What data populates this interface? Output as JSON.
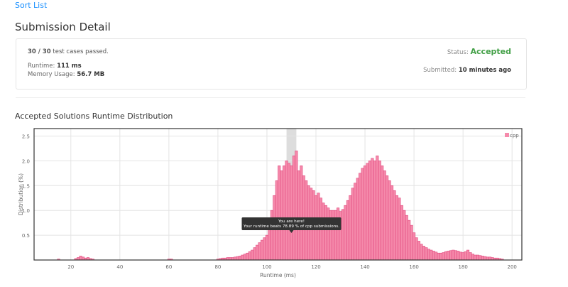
{
  "header": {
    "link": "Sort List",
    "title": "Submission Detail"
  },
  "detail": {
    "passed": "30 / 30",
    "passed_suffix": "test cases passed.",
    "runtime_label": "Runtime:",
    "runtime": "111 ms",
    "memory_label": "Memory Usage:",
    "memory": "56.7 MB",
    "status_label": "Status:",
    "status": "Accepted",
    "submitted_label": "Submitted:",
    "submitted": "10 minutes ago"
  },
  "chart_data": {
    "type": "bar",
    "title": "Accepted Solutions Runtime Distribution",
    "x_label": "Runtime (ms)",
    "y_label": "Distribution (%)",
    "x": [
      15,
      22,
      23,
      24,
      25,
      26,
      27,
      28,
      29,
      60,
      61,
      80,
      81,
      82,
      83,
      84,
      85,
      86,
      87,
      88,
      89,
      90,
      91,
      92,
      93,
      94,
      95,
      96,
      97,
      98,
      99,
      100,
      101,
      102,
      103,
      104,
      105,
      106,
      107,
      108,
      109,
      110,
      111,
      112,
      113,
      114,
      115,
      116,
      117,
      118,
      119,
      120,
      121,
      122,
      123,
      124,
      125,
      126,
      127,
      128,
      129,
      130,
      131,
      132,
      133,
      134,
      135,
      136,
      137,
      138,
      139,
      140,
      141,
      142,
      143,
      144,
      145,
      146,
      147,
      148,
      149,
      150,
      151,
      152,
      153,
      154,
      155,
      156,
      157,
      158,
      159,
      160,
      161,
      162,
      163,
      164,
      165,
      166,
      167,
      168,
      169,
      170,
      171,
      172,
      173,
      174,
      175,
      176,
      177,
      178,
      179,
      180,
      181,
      182,
      183,
      184,
      185,
      186,
      187,
      188,
      189,
      190,
      191,
      192,
      193,
      194,
      195,
      196
    ],
    "series": [
      {
        "name": "cpp",
        "color": "#f58aab",
        "values": [
          0.02,
          0.03,
          0.05,
          0.08,
          0.06,
          0.04,
          0.05,
          0.03,
          0.02,
          0.02,
          0.02,
          0.02,
          0.03,
          0.04,
          0.04,
          0.05,
          0.05,
          0.05,
          0.06,
          0.07,
          0.08,
          0.1,
          0.12,
          0.14,
          0.17,
          0.2,
          0.25,
          0.3,
          0.35,
          0.4,
          0.45,
          0.5,
          0.7,
          1.0,
          1.3,
          1.6,
          1.9,
          1.8,
          1.9,
          2.0,
          1.95,
          1.9,
          2.1,
          2.2,
          1.8,
          1.9,
          1.7,
          1.6,
          1.5,
          1.45,
          1.4,
          1.3,
          1.35,
          1.25,
          1.15,
          1.1,
          1.05,
          1.0,
          1.0,
          1.0,
          1.05,
          0.98,
          1.02,
          1.1,
          1.2,
          1.3,
          1.45,
          1.55,
          1.65,
          1.75,
          1.85,
          1.9,
          1.95,
          2.0,
          2.05,
          2.0,
          2.1,
          2.0,
          1.9,
          1.8,
          1.7,
          1.6,
          1.5,
          1.4,
          1.3,
          1.25,
          1.1,
          1.0,
          0.9,
          0.8,
          0.7,
          0.55,
          0.45,
          0.38,
          0.32,
          0.28,
          0.25,
          0.22,
          0.2,
          0.18,
          0.16,
          0.14,
          0.14,
          0.15,
          0.17,
          0.18,
          0.19,
          0.2,
          0.19,
          0.18,
          0.16,
          0.15,
          0.17,
          0.2,
          0.15,
          0.12,
          0.1,
          0.1,
          0.09,
          0.08,
          0.07,
          0.06,
          0.06,
          0.05,
          0.04,
          0.04,
          0.03,
          0.02
        ]
      }
    ],
    "xlim": [
      5,
      204
    ],
    "ylim": [
      0,
      2.65
    ],
    "xticks": [
      20,
      40,
      60,
      80,
      100,
      120,
      140,
      160,
      180,
      200
    ],
    "yticks": [
      0.5,
      {
        "value": 1,
        "label": "1.0"
      },
      1.5,
      {
        "value": 2,
        "label": "2.0"
      },
      2.5
    ],
    "grid": true,
    "legend": "top-right",
    "highlight": [
      108,
      112
    ],
    "annotations": [
      "You are here!",
      "Your runtime beats 78.89 % of cpp submissions."
    ]
  }
}
